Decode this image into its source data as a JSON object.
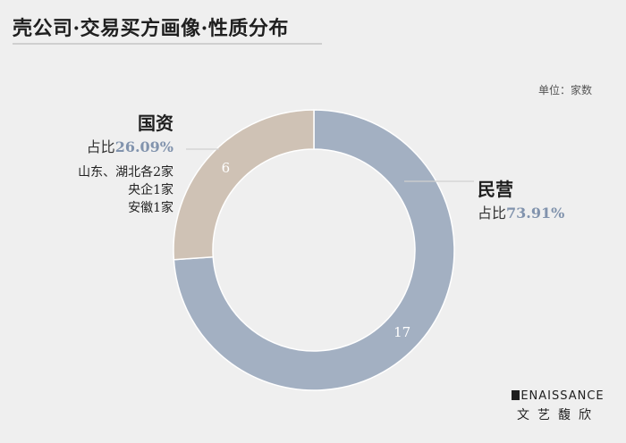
{
  "title": "壳公司·交易买方画像·性质分布",
  "unit_label": "单位：家数",
  "chart_data": {
    "type": "pie",
    "title": "壳公司·交易买方画像·性质分布",
    "unit": "单位：家数",
    "slices": [
      {
        "name": "民营",
        "value": 17,
        "percent": "73.91%",
        "color": "#a3b0c2"
      },
      {
        "name": "国资",
        "value": 6,
        "percent": "26.09%",
        "color": "#cfc2b5"
      }
    ],
    "donut": true
  },
  "labels": {
    "guozi": {
      "name": "国资",
      "pct_prefix": "占比",
      "pct": "26.09%",
      "notes": [
        "山东、湖北各2家",
        "央企1家",
        "安徽1家"
      ]
    },
    "minying": {
      "name": "民营",
      "pct_prefix": "占比",
      "pct": "73.91%"
    }
  },
  "logo": {
    "en_rest": "ENAISSANCE",
    "zh": "文艺馥欣"
  }
}
